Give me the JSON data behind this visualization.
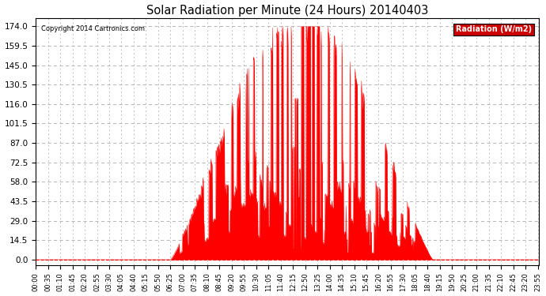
{
  "title": "Solar Radiation per Minute (24 Hours) 20140403",
  "ylabel": "Radiation (W/m2)",
  "copyright": "Copyright 2014 Cartronics.com",
  "bg_color": "#ffffff",
  "plot_bg_color": "#ffffff",
  "fill_color": "#ff0000",
  "line_color": "#ff0000",
  "grid_color": "#aaaaaa",
  "dashed_line_color": "#ff0000",
  "yticks": [
    0.0,
    14.5,
    29.0,
    43.5,
    58.0,
    72.5,
    87.0,
    101.5,
    116.0,
    130.5,
    145.0,
    159.5,
    174.0
  ],
  "ymax": 180.0,
  "ymin": -4.0,
  "total_minutes": 1440,
  "sunrise_minute": 385,
  "sunset_minute": 1135,
  "peak_minute": 745,
  "peak_value": 174.0
}
